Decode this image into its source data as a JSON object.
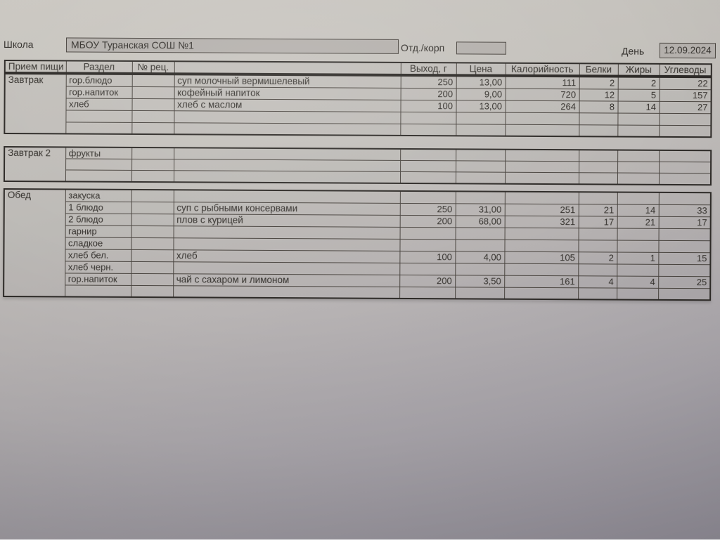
{
  "colors": {
    "ink": "#34312d",
    "line": "#4a4540",
    "line_heavy": "#2e2b28",
    "box_fill": "#b5b1ad",
    "paper_light": "#cbc8c2",
    "paper_dark": "#9d99a4"
  },
  "header": {
    "school_label": "Школа",
    "school_name": "МБОУ Туранская СОШ №1",
    "dept_label": "Отд./корп",
    "dept_value": "",
    "day_label": "День",
    "date_value": "12.09.2024"
  },
  "table": {
    "columns": [
      "Прием пищи",
      "Раздел",
      "№ рец.",
      "",
      "Выход, г",
      "Цена",
      "Калорийность",
      "Белки",
      "Жиры",
      "Углеводы"
    ],
    "sections": [
      {
        "meal": "Завтрак",
        "rows": [
          [
            "гор.блюдо",
            "",
            "суп молочный вермишелевый",
            "250",
            "13,00",
            "111",
            "2",
            "2",
            "22"
          ],
          [
            "гор.напиток",
            "",
            "кофейный напиток",
            "200",
            "9,00",
            "720",
            "12",
            "5",
            "157"
          ],
          [
            "хлеб",
            "",
            "хлеб с маслом",
            "100",
            "13,00",
            "264",
            "8",
            "14",
            "27"
          ],
          [
            "",
            "",
            "",
            "",
            "",
            "",
            "",
            "",
            ""
          ],
          [
            "",
            "",
            "",
            "",
            "",
            "",
            "",
            "",
            ""
          ]
        ]
      },
      {
        "meal": "Завтрак 2",
        "rows": [
          [
            "фрукты",
            "",
            "",
            "",
            "",
            "",
            "",
            "",
            ""
          ],
          [
            "",
            "",
            "",
            "",
            "",
            "",
            "",
            "",
            ""
          ],
          [
            "",
            "",
            "",
            "",
            "",
            "",
            "",
            "",
            ""
          ]
        ]
      },
      {
        "meal": "Обед",
        "rows": [
          [
            "закуска",
            "",
            "",
            "",
            "",
            "",
            "",
            "",
            ""
          ],
          [
            "1 блюдо",
            "",
            "суп с рыбными консервами",
            "250",
            "31,00",
            "251",
            "21",
            "14",
            "33"
          ],
          [
            "2 блюдо",
            "",
            "плов с курицей",
            "200",
            "68,00",
            "321",
            "17",
            "21",
            "17"
          ],
          [
            "гарнир",
            "",
            "",
            "",
            "",
            "",
            "",
            "",
            ""
          ],
          [
            "сладкое",
            "",
            "",
            "",
            "",
            "",
            "",
            "",
            ""
          ],
          [
            "хлеб бел.",
            "",
            "хлеб",
            "100",
            "4,00",
            "105",
            "2",
            "1",
            "15"
          ],
          [
            "хлеб черн.",
            "",
            "",
            "",
            "",
            "",
            "",
            "",
            ""
          ],
          [
            "гор.напиток",
            "",
            "чай с сахаром и лимоном",
            "200",
            "3,50",
            "161",
            "4",
            "4",
            "25"
          ],
          [
            "",
            "",
            "",
            "",
            "",
            "",
            "",
            "",
            ""
          ]
        ]
      }
    ]
  }
}
